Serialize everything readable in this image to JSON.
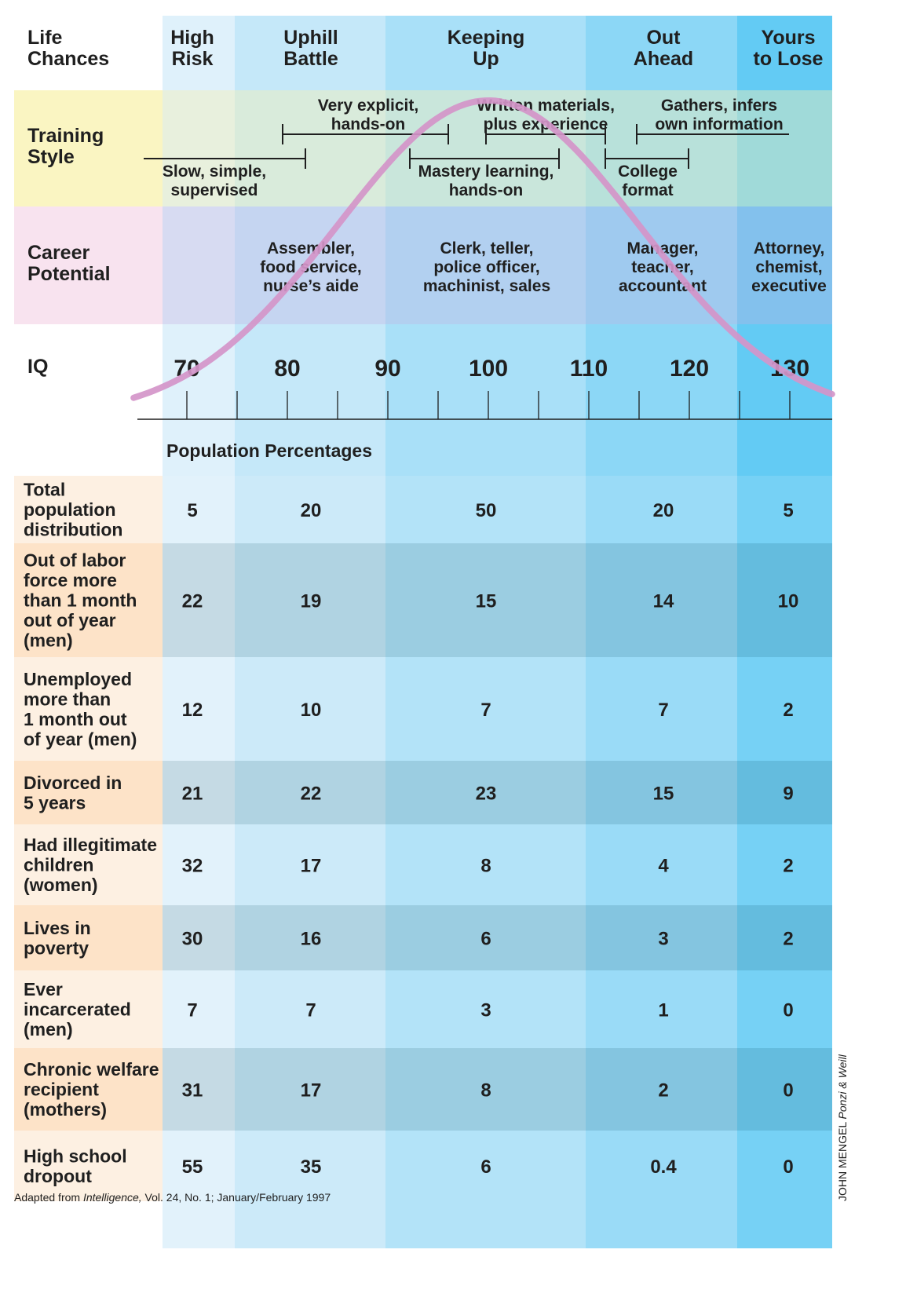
{
  "header": {
    "row_title_lines": [
      "Life",
      "Chances"
    ],
    "columns": [
      {
        "lines": [
          "High",
          "Risk"
        ]
      },
      {
        "lines": [
          "Uphill",
          "Battle"
        ]
      },
      {
        "lines": [
          "Keeping",
          "Up"
        ]
      },
      {
        "lines": [
          "Out",
          "Ahead"
        ]
      },
      {
        "lines": [
          "Yours",
          "to Lose"
        ]
      }
    ]
  },
  "training": {
    "title_lines": [
      "Training",
      "Style"
    ],
    "styles": [
      {
        "lines": [
          "Slow, simple,",
          "supervised"
        ]
      },
      {
        "lines": [
          "Very explicit,",
          "hands-on"
        ]
      },
      {
        "lines": [
          "Mastery learning,",
          "hands-on"
        ]
      },
      {
        "lines": [
          "Written materials,",
          "plus experience"
        ]
      },
      {
        "lines": [
          "College",
          "format"
        ]
      },
      {
        "lines": [
          "Gathers, infers",
          "own information"
        ]
      }
    ]
  },
  "career": {
    "title_lines": [
      "Career",
      "Potential"
    ],
    "jobs": [
      {
        "lines": [
          "Assembler,",
          "food service,",
          "nurse’s aide"
        ]
      },
      {
        "lines": [
          "Clerk, teller,",
          "police officer,",
          "machinist, sales"
        ]
      },
      {
        "lines": [
          "Manager,",
          "teacher,",
          "accountant"
        ]
      },
      {
        "lines": [
          "Attorney,",
          "chemist,",
          "executive"
        ]
      }
    ]
  },
  "chart_data": {
    "type": "table",
    "title": "Life Chances",
    "xlabel": "IQ",
    "x_ticks": [
      70,
      80,
      90,
      100,
      110,
      120,
      130
    ],
    "xlim": [
      65,
      135
    ],
    "curve": {
      "type": "normal",
      "mean": 100,
      "sd": 15
    },
    "section_label": "Population Percentages",
    "categories": [
      "High Risk",
      "Uphill Battle",
      "Keeping Up",
      "Out Ahead",
      "Yours to Lose"
    ],
    "rows": [
      {
        "label_lines": [
          "Total",
          "population",
          "distribution"
        ],
        "values": [
          "5",
          "20",
          "50",
          "20",
          "5"
        ]
      },
      {
        "label_lines": [
          "Out of labor",
          "force more",
          "than 1 month",
          "out of year",
          "(men)"
        ],
        "values": [
          "22",
          "19",
          "15",
          "14",
          "10"
        ]
      },
      {
        "label_lines": [
          "Unemployed",
          "more than",
          "1 month out",
          "of year (men)"
        ],
        "values": [
          "12",
          "10",
          "7",
          "7",
          "2"
        ]
      },
      {
        "label_lines": [
          "Divorced in",
          "5 years"
        ],
        "values": [
          "21",
          "22",
          "23",
          "15",
          "9"
        ]
      },
      {
        "label_lines": [
          "Had illegitimate",
          "children",
          "(women)"
        ],
        "values": [
          "32",
          "17",
          "8",
          "4",
          "2"
        ]
      },
      {
        "label_lines": [
          "Lives in",
          "poverty"
        ],
        "values": [
          "30",
          "16",
          "6",
          "3",
          "2"
        ]
      },
      {
        "label_lines": [
          "Ever",
          "incarcerated",
          "(men)"
        ],
        "values": [
          "7",
          "7",
          "3",
          "1",
          "0"
        ]
      },
      {
        "label_lines": [
          "Chronic welfare",
          "recipient",
          "(mothers)"
        ],
        "values": [
          "31",
          "17",
          "8",
          "2",
          "0"
        ]
      },
      {
        "label_lines": [
          "High school",
          "dropout"
        ],
        "values": [
          "55",
          "35",
          "6",
          "0.4",
          "0"
        ]
      }
    ]
  },
  "source": {
    "prefix": "Adapted from ",
    "journal": "Intelligence,",
    "suffix": " Vol. 24, No. 1; January/February 1997"
  },
  "credit": {
    "artist": "JOHN MENGEL ",
    "publisher": "Ponzi & Weill"
  },
  "colors": {
    "column_fills": [
      "#dff1fb",
      "#c5e8f9",
      "#a9e0f8",
      "#8cd7f6",
      "#63cbf4"
    ],
    "label_fill": "#ffffff",
    "training_label": "#faf5c2",
    "career_label": "#f8e3ef",
    "table_label": "#fdeedf",
    "curve": "#d495c9",
    "ink": "#1f1f1f"
  }
}
